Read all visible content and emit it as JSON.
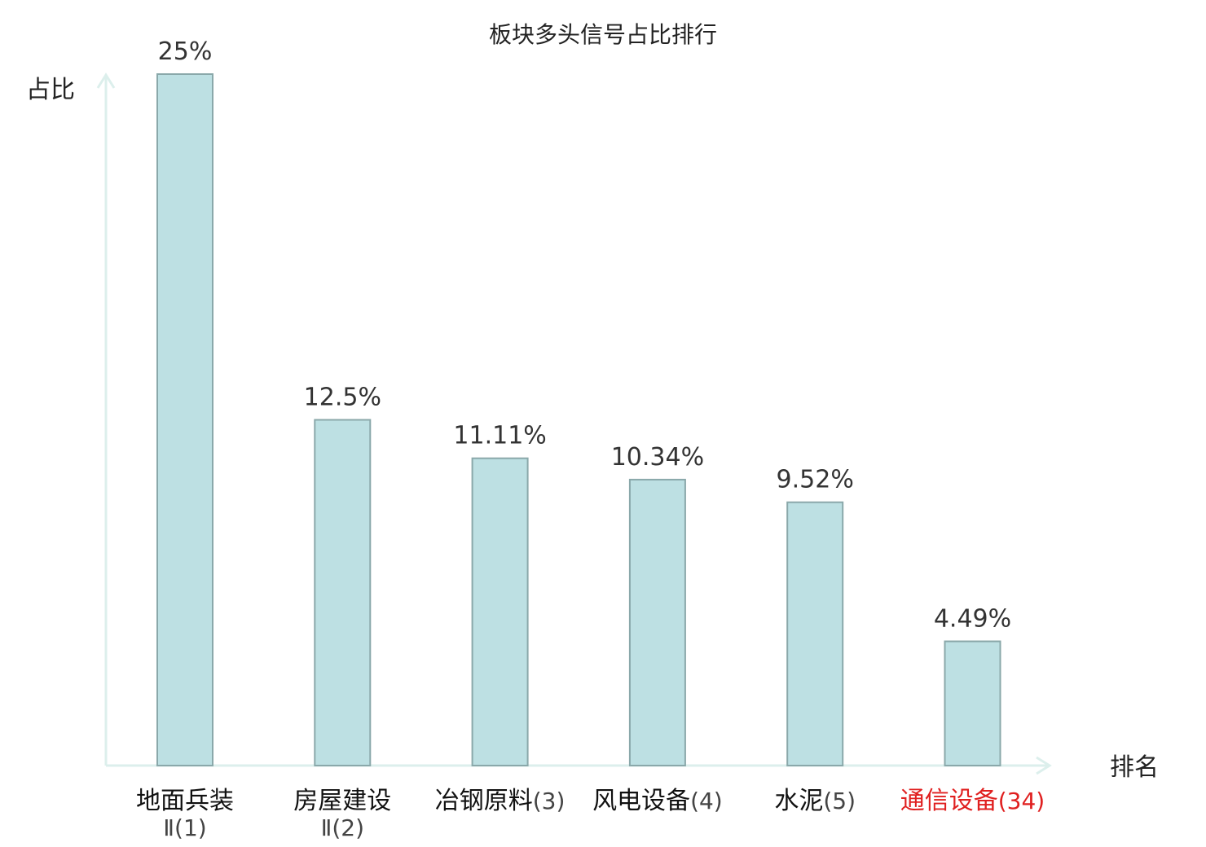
{
  "chart_data": {
    "type": "bar",
    "title": "板块多头信号占比排行",
    "ylabel": "占比",
    "xlabel": "排名",
    "ylim": [
      0,
      25
    ],
    "grid": false,
    "categories": [
      {
        "name": "地面兵装",
        "rank": "Ⅱ(1)",
        "value": 25,
        "label": "25%",
        "highlight": false
      },
      {
        "name": "房屋建设",
        "rank": "Ⅱ(2)",
        "value": 12.5,
        "label": "12.5%",
        "highlight": false
      },
      {
        "name": "冶钢原料",
        "rank": "(3)",
        "value": 11.11,
        "label": "11.11%",
        "highlight": false
      },
      {
        "name": "风电设备",
        "rank": "(4)",
        "value": 10.34,
        "label": "10.34%",
        "highlight": false
      },
      {
        "name": "水泥",
        "rank": "(5)",
        "value": 9.52,
        "label": "9.52%",
        "highlight": false
      },
      {
        "name": "通信设备",
        "rank": "(34)",
        "value": 4.49,
        "label": "4.49%",
        "highlight": true
      }
    ],
    "colors": {
      "bar_fill": "#bde0e3",
      "bar_stroke": "#8aa8aa",
      "axis": "#dcefec",
      "highlight_text": "#e02020",
      "normal_name": "#111111",
      "normal_rank": "#444444"
    }
  }
}
